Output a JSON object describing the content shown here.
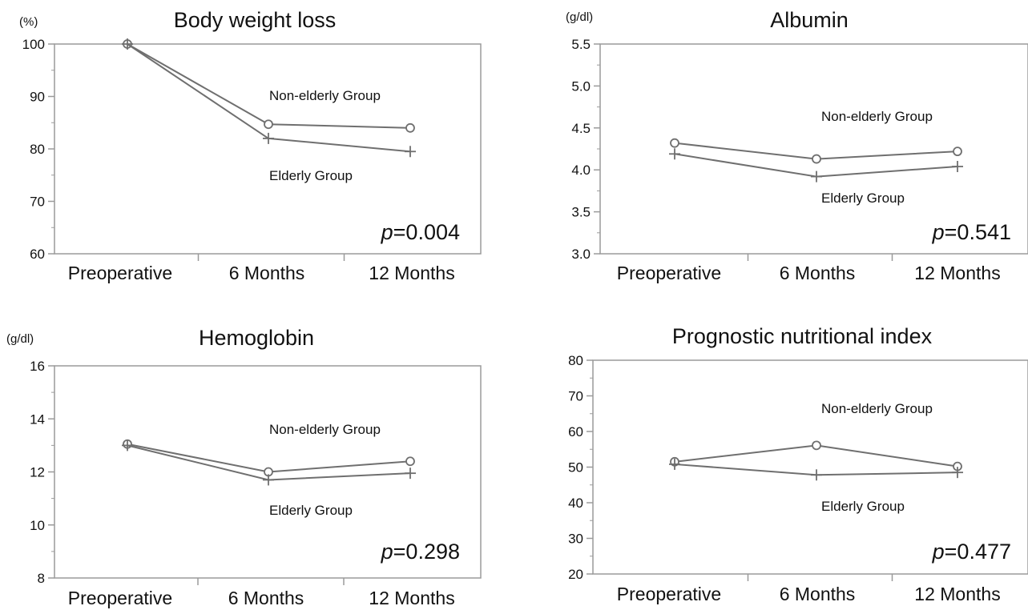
{
  "chart_data": [
    {
      "type": "line",
      "title": "Body weight loss",
      "unit": "(%)",
      "categories": [
        "Preoperative",
        "6 Months",
        "12 Months"
      ],
      "ylim": [
        60,
        100
      ],
      "yticks": [
        "60",
        "70",
        "80",
        "90",
        "100"
      ],
      "series": [
        {
          "name": "Non-elderly Group",
          "marker": "circle",
          "values": [
            100,
            84.7,
            84
          ]
        },
        {
          "name": "Elderly Group",
          "marker": "plus",
          "values": [
            100,
            82,
            79.5
          ]
        }
      ],
      "p_label": "p",
      "p_value": "=0.004",
      "grid": false
    },
    {
      "type": "line",
      "title": "Albumin",
      "unit": "(g/dl)",
      "categories": [
        "Preoperative",
        "6 Months",
        "12 Months"
      ],
      "ylim": [
        3.0,
        5.5
      ],
      "yticks": [
        "3.0",
        "3.5",
        "4.0",
        "4.5",
        "5.0",
        "5.5"
      ],
      "series": [
        {
          "name": "Non-elderly Group",
          "marker": "circle",
          "values": [
            4.32,
            4.13,
            4.22
          ]
        },
        {
          "name": "Elderly Group",
          "marker": "plus",
          "values": [
            4.19,
            3.92,
            4.04
          ]
        }
      ],
      "p_label": "p",
      "p_value": "=0.541",
      "grid": false
    },
    {
      "type": "line",
      "title": "Hemoglobin",
      "unit": "(g/dl)",
      "categories": [
        "Preoperative",
        "6 Months",
        "12 Months"
      ],
      "ylim": [
        8,
        16
      ],
      "yticks": [
        "8",
        "10",
        "12",
        "14",
        "16"
      ],
      "series": [
        {
          "name": "Non-elderly Group",
          "marker": "circle",
          "values": [
            13.05,
            12.0,
            12.4
          ]
        },
        {
          "name": "Elderly Group",
          "marker": "plus",
          "values": [
            13.0,
            11.7,
            11.95
          ]
        }
      ],
      "p_label": "p",
      "p_value": "=0.298",
      "grid": false
    },
    {
      "type": "line",
      "title": "Prognostic nutritional index",
      "unit": "",
      "categories": [
        "Preoperative",
        "6 Months",
        "12 Months"
      ],
      "ylim": [
        20,
        80
      ],
      "yticks": [
        "20",
        "30",
        "40",
        "50",
        "60",
        "70",
        "80"
      ],
      "series": [
        {
          "name": "Non-elderly Group",
          "marker": "circle",
          "values": [
            51.5,
            56.1,
            50.2
          ]
        },
        {
          "name": "Elderly Group",
          "marker": "plus",
          "values": [
            50.8,
            47.8,
            48.5
          ]
        }
      ],
      "p_label": "p",
      "p_value": "=0.477",
      "grid": false
    }
  ],
  "colors": {
    "axis": "#9a9a9a",
    "line": "#6f6f6f",
    "text": "#111111"
  }
}
